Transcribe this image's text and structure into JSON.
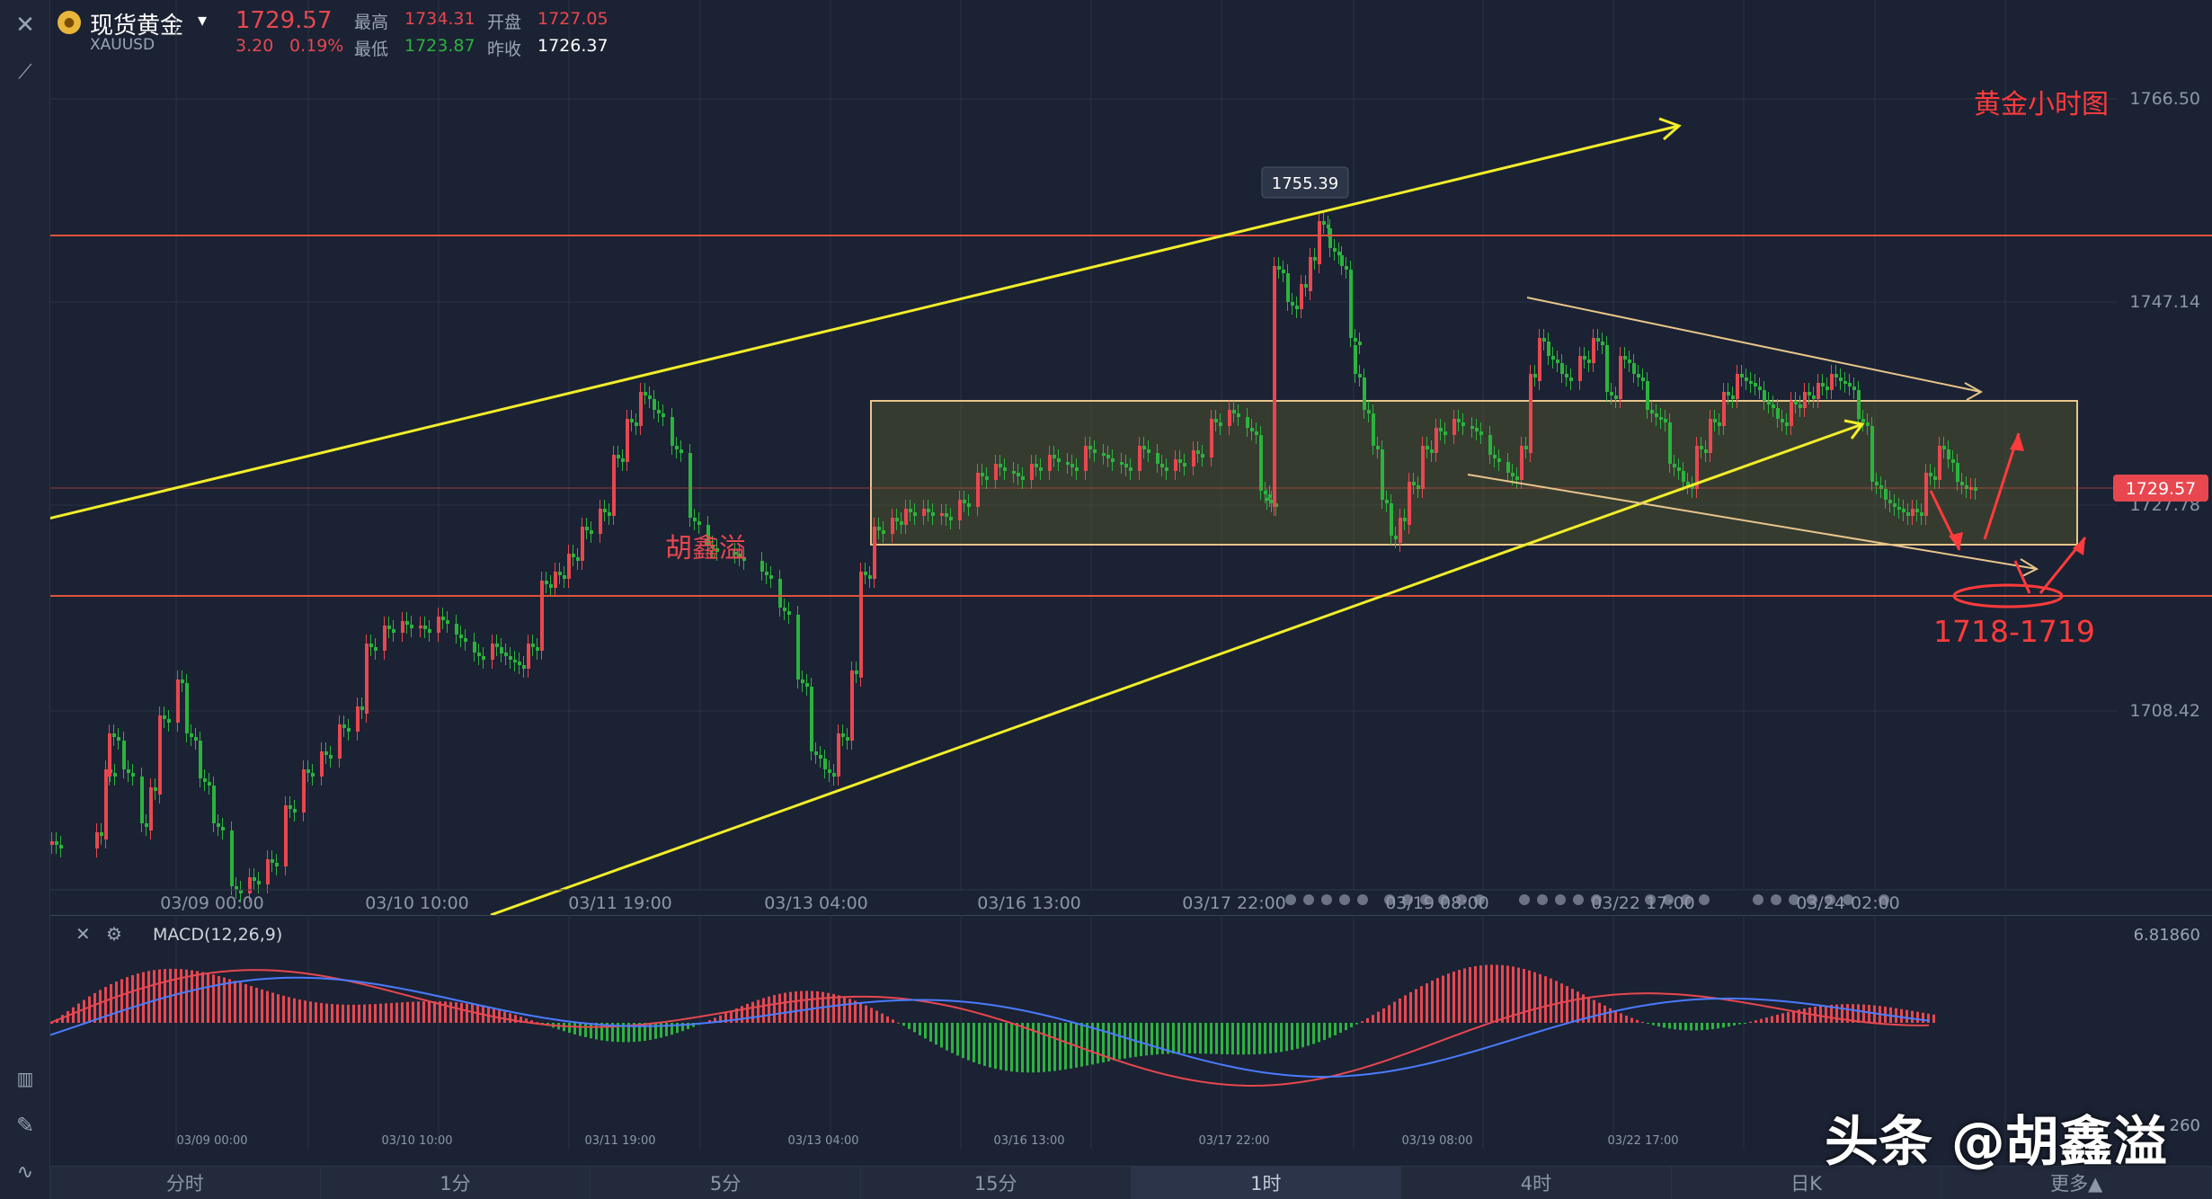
{
  "header": {
    "instrument_name": "现货黄金",
    "symbol": "XAUUSD",
    "price": "1729.57",
    "change": "3.20",
    "change_pct": "0.19%",
    "high_label": "最高",
    "high_value": "1734.31",
    "open_label": "开盘",
    "open_value": "1727.05",
    "low_label": "最低",
    "low_value": "1723.87",
    "prev_close_label": "昨收",
    "prev_close_value": "1726.37"
  },
  "toolbar": {
    "close_icon": "close-icon",
    "draw_icon": "draw-line-icon",
    "bottom_icons": [
      "candlestick-icon",
      "pencil-icon",
      "indicator-icon"
    ]
  },
  "annotations": {
    "chart_title": "黄金小时图",
    "target_zone": "1718-1719",
    "author_tag": "胡鑫溢",
    "peak_label": "1755.39"
  },
  "price_axis": {
    "ticks": [
      "1766.50",
      "1747.14",
      "1727.78",
      "1708.42"
    ],
    "current_price_tag": "1729.57"
  },
  "time_axis": {
    "ticks": [
      "03/09 00:00",
      "03/10 10:00",
      "03/11 19:00",
      "03/13 04:00",
      "03/16 13:00",
      "03/17 22:00",
      "03/19 08:00",
      "03/22 17:00",
      "03/24 02:00"
    ]
  },
  "macd": {
    "label": "MACD(12,26,9)",
    "axis_top": "6.81860",
    "axis_bottom": "260",
    "time_ticks": [
      "03/09 00:00",
      "03/10 10:00",
      "03/11 19:00",
      "03/13 04:00",
      "03/16 13:00",
      "03/17 22:00",
      "03/19 08:00",
      "03/22 17:00"
    ]
  },
  "timeframe_tabs": [
    "分时",
    "1分",
    "5分",
    "15分",
    "1时",
    "4时",
    "日K",
    "更多▲"
  ],
  "active_tab": "1时",
  "watermark": "头条 @胡鑫溢",
  "colors": {
    "background": "#1b2233",
    "up": "#e8474f",
    "down": "#2bb33e",
    "trend_line": "#f2ee2a",
    "resistance_line": "#e0533c",
    "box_border": "#e8c58a",
    "annotation": "#ff3b3b"
  }
}
